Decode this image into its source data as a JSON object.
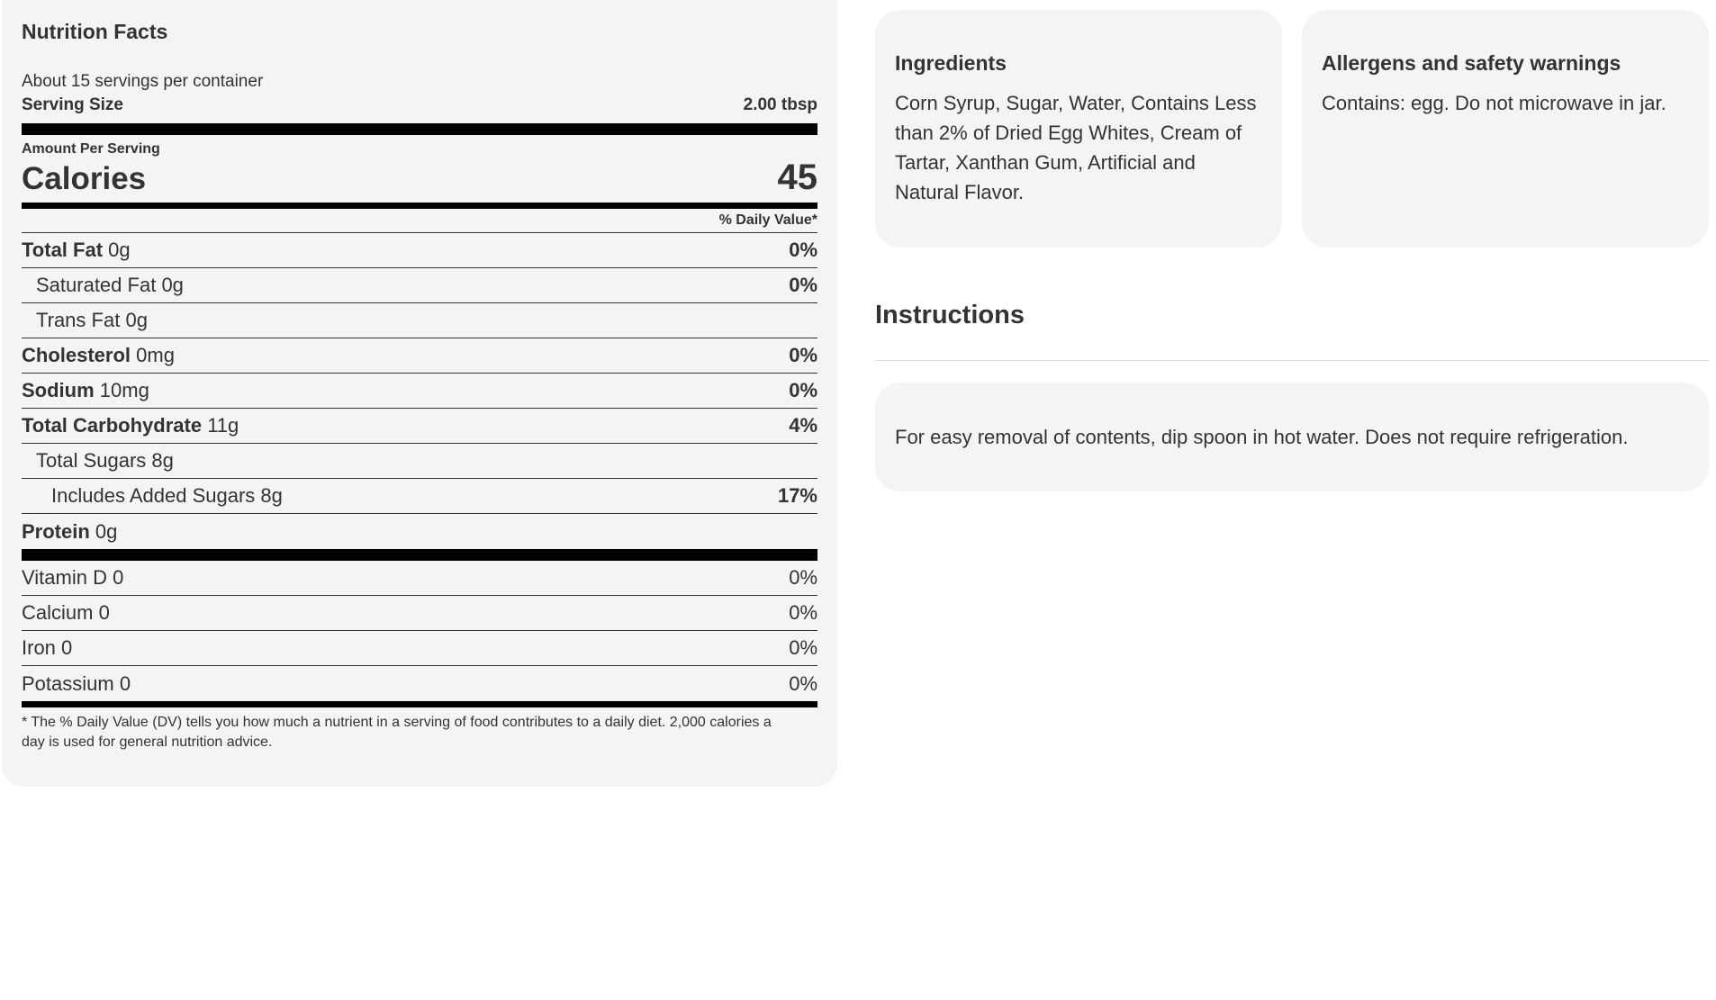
{
  "nutrition": {
    "title": "Nutrition Facts",
    "servings_per_container": "About 15 servings per container",
    "serving_size_label": "Serving Size",
    "serving_size_value": "2.00 tbsp",
    "amount_per_serving": "Amount Per Serving",
    "calories_label": "Calories",
    "calories_value": "45",
    "daily_value_header": "% Daily Value*",
    "nutrients": [
      {
        "name": "Total Fat",
        "amount": "0g",
        "dv": "0%"
      },
      {
        "name": "Saturated Fat",
        "amount": "0g",
        "dv": "0%"
      },
      {
        "name": "Trans Fat",
        "amount": "0g",
        "dv": ""
      },
      {
        "name": "Cholesterol",
        "amount": "0mg",
        "dv": "0%"
      },
      {
        "name": "Sodium",
        "amount": "10mg",
        "dv": "0%"
      },
      {
        "name": "Total Carbohydrate",
        "amount": "11g",
        "dv": "4%"
      },
      {
        "name": "Total Sugars",
        "amount": "8g",
        "dv": ""
      },
      {
        "name": "Includes Added Sugars",
        "amount": "8g",
        "dv": "17%"
      },
      {
        "name": "Protein",
        "amount": "0g",
        "dv": ""
      }
    ],
    "vitamins": [
      {
        "name": "Vitamin D",
        "amount": "0",
        "dv": "0%"
      },
      {
        "name": "Calcium",
        "amount": "0",
        "dv": "0%"
      },
      {
        "name": "Iron",
        "amount": "0",
        "dv": "0%"
      },
      {
        "name": "Potassium",
        "amount": "0",
        "dv": "0%"
      }
    ],
    "footnote": "* The % Daily Value (DV) tells you how much a nutrient in a serving of food contributes to a daily diet. 2,000 calories a day is used for general nutrition advice."
  },
  "ingredients": {
    "title": "Ingredients",
    "text": "Corn Syrup, Sugar, Water, Contains Less than 2% of Dried Egg Whites, Cream of Tartar, Xanthan Gum, Artificial and Natural Flavor."
  },
  "allergens": {
    "title": "Allergens and safety warnings",
    "text": "Contains: egg. Do not microwave in jar."
  },
  "instructions": {
    "heading": "Instructions",
    "text": "For easy removal of contents, dip spoon in hot water. Does not require refrigeration."
  },
  "colors": {
    "panel_background": "#f4f4f4",
    "text": "#333333",
    "rule": "#000000"
  }
}
